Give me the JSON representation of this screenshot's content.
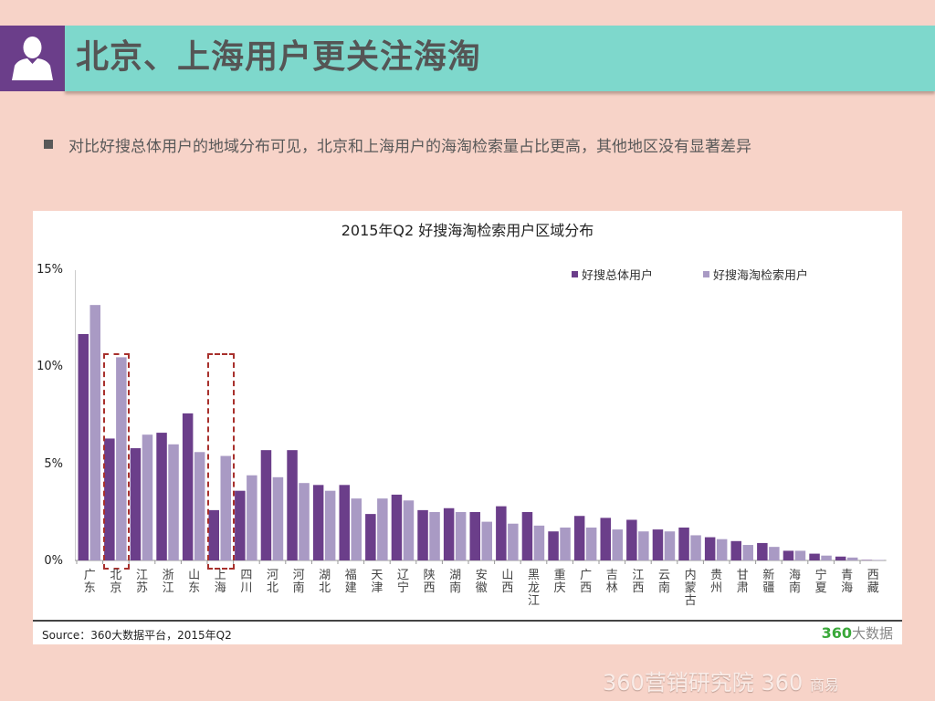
{
  "header": {
    "icon": "user-silhouette-icon",
    "title": "北京、上海用户更关注海淘"
  },
  "bullet": {
    "text": "对比好搜总体用户的地域分布可见，北京和上海用户的海淘检索量占比更高，其他地区没有显著差异"
  },
  "colors": {
    "background": "#f7d3c8",
    "header_bar": "#7ed8cc",
    "header_icon_box": "#6b3e8a",
    "series_total": "#6b3e8a",
    "series_haitao": "#a99ac4",
    "highlight_box": "#a8302c",
    "logo_green": "#3aa83a"
  },
  "chart": {
    "title": "2015年Q2 好搜海淘检索用户区域分布",
    "legend": [
      "好搜总体用户",
      "好搜海淘检索用户"
    ],
    "y_ticks": [
      "15%",
      "10%",
      "5%",
      "0%"
    ],
    "source": "Source：360大数据平台，2015年Q2",
    "logo_num": "360",
    "logo_text": "大数据"
  },
  "footer": {
    "brand1_num": "360",
    "brand1_text": "营销研究院",
    "brand2_num": "360",
    "brand2_text": "商易"
  },
  "chart_data": {
    "type": "bar",
    "title": "2015年Q2 好搜海淘检索用户区域分布",
    "xlabel": "",
    "ylabel": "",
    "ylim": [
      0,
      15
    ],
    "y_tick_labels": [
      "0%",
      "5%",
      "10%",
      "15%"
    ],
    "grid": false,
    "legend_position": "top-right",
    "annotations": [
      "北京 highlighted with red dashed box",
      "上海 highlighted with red dashed box"
    ],
    "categories": [
      "广东",
      "北京",
      "江苏",
      "浙江",
      "山东",
      "上海",
      "四川",
      "河北",
      "河南",
      "湖北",
      "福建",
      "天津",
      "辽宁",
      "陕西",
      "湖南",
      "安徽",
      "山西",
      "黑龙江",
      "重庆",
      "广西",
      "吉林",
      "江西",
      "云南",
      "内蒙古",
      "贵州",
      "甘肃",
      "新疆",
      "海南",
      "宁夏",
      "青海",
      "西藏"
    ],
    "series": [
      {
        "name": "好搜总体用户",
        "values": [
          11.7,
          6.3,
          5.8,
          6.6,
          7.6,
          2.6,
          3.6,
          5.7,
          5.7,
          3.9,
          3.9,
          2.4,
          3.4,
          2.6,
          2.7,
          2.5,
          2.8,
          2.5,
          1.5,
          2.3,
          2.2,
          2.1,
          1.6,
          1.7,
          1.2,
          1.0,
          0.9,
          0.5,
          0.35,
          0.2,
          0.02
        ]
      },
      {
        "name": "好搜海淘检索用户",
        "values": [
          13.2,
          10.5,
          6.5,
          6.0,
          5.6,
          5.4,
          4.4,
          4.3,
          4.0,
          3.6,
          3.2,
          3.2,
          3.1,
          2.5,
          2.5,
          2.0,
          1.9,
          1.8,
          1.7,
          1.7,
          1.6,
          1.5,
          1.5,
          1.3,
          1.1,
          0.8,
          0.7,
          0.5,
          0.25,
          0.15,
          0.02
        ]
      }
    ]
  }
}
